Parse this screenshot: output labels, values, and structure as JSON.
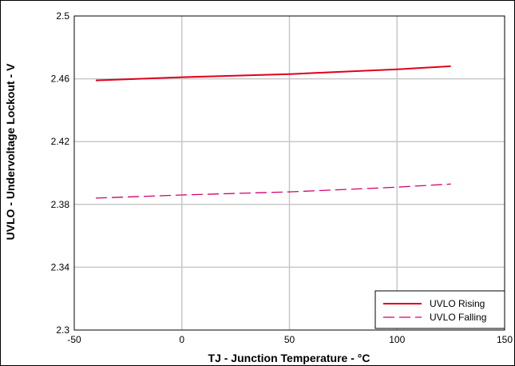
{
  "chart_data": {
    "type": "line",
    "xlabel": "TJ - Junction Temperature - °C",
    "ylabel": "UVLO - Undervoltage Lockout - V",
    "xlim": [
      -50,
      150
    ],
    "ylim": [
      2.3,
      2.5
    ],
    "xticks": [
      "-50",
      "0",
      "50",
      "100",
      "150"
    ],
    "yticks": [
      "2.3",
      "2.34",
      "2.38",
      "2.42",
      "2.46",
      "2.5"
    ],
    "grid": true,
    "legend_position": "bottom-right",
    "series": [
      {
        "name": "UVLO Rising",
        "color": "#e0001b",
        "style": "solid",
        "x": [
          -40,
          0,
          50,
          100,
          125
        ],
        "y": [
          2.459,
          2.461,
          2.463,
          2.466,
          2.468
        ]
      },
      {
        "name": "UVLO Falling",
        "color": "#d6006e",
        "style": "dashed",
        "x": [
          -40,
          0,
          50,
          100,
          125
        ],
        "y": [
          2.384,
          2.386,
          2.388,
          2.391,
          2.393
        ]
      }
    ]
  }
}
